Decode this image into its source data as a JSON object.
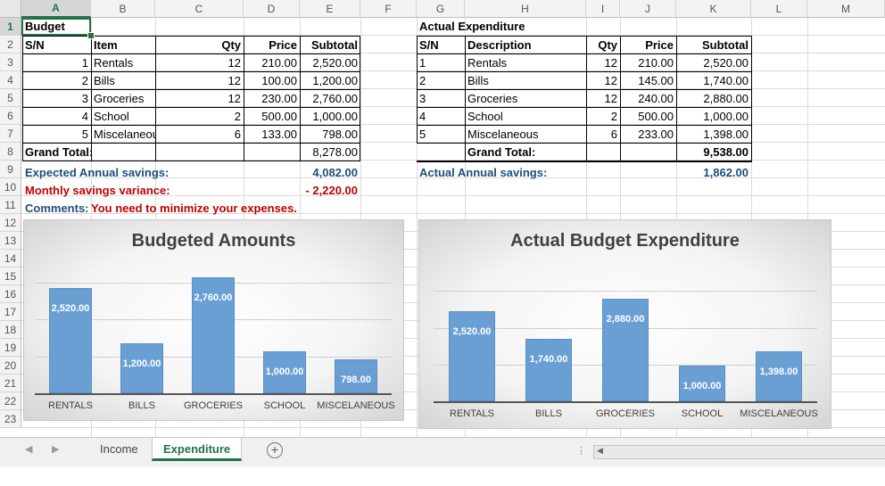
{
  "columns": [
    "A",
    "B",
    "C",
    "D",
    "E",
    "F",
    "G",
    "H",
    "I",
    "J",
    "K",
    "L",
    "M"
  ],
  "rows": [
    "1",
    "2",
    "3",
    "4",
    "5",
    "6",
    "7",
    "8",
    "9",
    "10",
    "11",
    "12",
    "13",
    "14",
    "15",
    "16",
    "17",
    "18",
    "19",
    "20",
    "21",
    "22",
    "23"
  ],
  "budget": {
    "title": "Budget",
    "headers": {
      "sn": "S/N",
      "item": "Item",
      "qty": "Qty",
      "price": "Price",
      "subtotal": "Subtotal"
    },
    "rows": [
      {
        "sn": "1",
        "item": "Rentals",
        "qty": "12",
        "price": "210.00",
        "subtotal": "2,520.00"
      },
      {
        "sn": "2",
        "item": "Bills",
        "qty": "12",
        "price": "100.00",
        "subtotal": "1,200.00"
      },
      {
        "sn": "3",
        "item": "Groceries",
        "qty": "12",
        "price": "230.00",
        "subtotal": "2,760.00"
      },
      {
        "sn": "4",
        "item": "School",
        "qty": "2",
        "price": "500.00",
        "subtotal": "1,000.00"
      },
      {
        "sn": "5",
        "item": "Miscelaneou",
        "qty": "6",
        "price": "133.00",
        "subtotal": "798.00"
      }
    ],
    "grand_total_label": "Grand Total:",
    "grand_total": "8,278.00",
    "expected_savings_label": "Expected Annual savings:",
    "expected_savings": "4,082.00",
    "variance_label": "Monthly savings variance:",
    "variance": "- 2,220.00",
    "comments_label": "Comments:",
    "comments_text": "You need to minimize your expenses."
  },
  "actual": {
    "title": "Actual Expenditure",
    "headers": {
      "sn": "S/N",
      "item": "Description",
      "qty": "Qty",
      "price": "Price",
      "subtotal": "Subtotal"
    },
    "rows": [
      {
        "sn": "1",
        "item": "Rentals",
        "qty": "12",
        "price": "210.00",
        "subtotal": "2,520.00"
      },
      {
        "sn": "2",
        "item": "Bills",
        "qty": "12",
        "price": "145.00",
        "subtotal": "1,740.00"
      },
      {
        "sn": "3",
        "item": "Groceries",
        "qty": "12",
        "price": "240.00",
        "subtotal": "2,880.00"
      },
      {
        "sn": "4",
        "item": "School",
        "qty": "2",
        "price": "500.00",
        "subtotal": "1,000.00"
      },
      {
        "sn": "5",
        "item": "Miscelaneous",
        "qty": "6",
        "price": "233.00",
        "subtotal": "1,398.00"
      }
    ],
    "grand_total_label": "Grand Total:",
    "grand_total": "9,538.00",
    "savings_label": "Actual Annual savings:",
    "savings": "1,862.00"
  },
  "chart_data": [
    {
      "type": "bar",
      "title": "Budgeted Amounts",
      "categories": [
        "RENTALS",
        "BILLS",
        "GROCERIES",
        "SCHOOL",
        "MISCELANEOUS"
      ],
      "values": [
        2520,
        1200,
        2760,
        1000,
        798
      ],
      "labels": [
        "2,520.00",
        "1,200.00",
        "2,760.00",
        "1,000.00",
        "798.00"
      ],
      "ylim": [
        0,
        3000
      ],
      "grid": true
    },
    {
      "type": "bar",
      "title": "Actual Budget Expenditure",
      "categories": [
        "RENTALS",
        "BILLS",
        "GROCERIES",
        "SCHOOL",
        "MISCELANEOUS"
      ],
      "values": [
        2520,
        1740,
        2880,
        1000,
        1398
      ],
      "labels": [
        "2,520.00",
        "1,740.00",
        "2,880.00",
        "1,000.00",
        "1,398.00"
      ],
      "ylim": [
        0,
        3500
      ],
      "grid": true
    }
  ],
  "tabs": [
    {
      "label": "Income",
      "active": false
    },
    {
      "label": "Expenditure",
      "active": true
    }
  ],
  "add_sheet": "+",
  "colors": {
    "accent": "#217346",
    "bar": "#6a9fd4",
    "savings_text": "#1f4e79",
    "warning_text": "#c00000"
  }
}
